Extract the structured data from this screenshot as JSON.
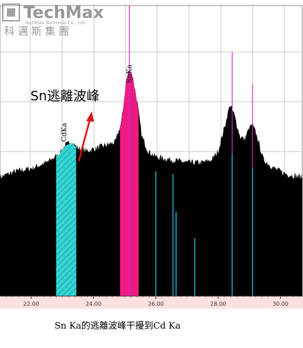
{
  "logo": {
    "brand": "TechMax",
    "subtitle": "TechMax Technical Co., Ltd",
    "chinese": "科 邁 斯 集 團"
  },
  "annotation": {
    "text": "Sn逃離波峰"
  },
  "caption": "Sn Ka的逃離波峰干擾到Cd Ka",
  "colors": {
    "spectrum": "#000000",
    "cd_band": "#33d6d6",
    "sn_band": "#ee1a84",
    "sn_marker": "#cc33cc",
    "cd_lines": "#22aacc",
    "arrow": "#dd1111",
    "grid": "#c8c8c8",
    "axis_band": "#ffe0e0"
  },
  "chart_data": {
    "type": "area",
    "title": "",
    "xlabel": "",
    "ylabel": "",
    "xlim": [
      21.0,
      30.7
    ],
    "ylim": [
      0,
      100
    ],
    "grid": true,
    "x_ticks": [
      "22.00",
      "24.00",
      "26.00",
      "28.00",
      "30.00"
    ],
    "x_tick_values": [
      22,
      24,
      26,
      28,
      30
    ],
    "series": [
      {
        "points": [
          [
            21.0,
            41
          ],
          [
            21.5,
            43
          ],
          [
            22.0,
            44
          ],
          [
            22.5,
            46
          ],
          [
            22.9,
            49
          ],
          [
            23.1,
            52
          ],
          [
            23.3,
            53
          ],
          [
            23.5,
            51
          ],
          [
            23.8,
            50
          ],
          [
            24.1,
            51
          ],
          [
            24.4,
            52
          ],
          [
            24.7,
            53
          ],
          [
            24.9,
            60
          ],
          [
            25.05,
            74
          ],
          [
            25.15,
            78
          ],
          [
            25.25,
            76
          ],
          [
            25.4,
            67
          ],
          [
            25.55,
            55
          ],
          [
            25.75,
            50
          ],
          [
            26.0,
            48
          ],
          [
            26.5,
            47
          ],
          [
            27.0,
            46
          ],
          [
            27.5,
            46
          ],
          [
            27.8,
            47
          ],
          [
            28.0,
            50
          ],
          [
            28.2,
            58
          ],
          [
            28.38,
            66
          ],
          [
            28.5,
            63
          ],
          [
            28.7,
            55
          ],
          [
            28.85,
            54
          ],
          [
            29.0,
            58
          ],
          [
            29.1,
            59
          ],
          [
            29.25,
            55
          ],
          [
            29.45,
            47
          ],
          [
            29.8,
            44
          ],
          [
            30.2,
            42
          ],
          [
            30.7,
            41
          ]
        ]
      }
    ],
    "regions": [
      {
        "label": "CdKa",
        "x0": 22.8,
        "x1": 23.45,
        "color": "cd_band",
        "hatch": true
      },
      {
        "label": "SnKa",
        "x0": 24.85,
        "x1": 25.45,
        "color": "sn_band",
        "hatch": false
      }
    ],
    "markers": [
      {
        "label": "SnKa",
        "x": 25.15,
        "y": 100,
        "color": "sn_marker"
      },
      {
        "label": "",
        "x": 28.45,
        "y": 84,
        "color": "sn_marker"
      },
      {
        "label": "",
        "x": 29.1,
        "y": 73,
        "color": "sn_marker"
      },
      {
        "label": "",
        "x": 26.0,
        "y": 43,
        "color": "cd_lines"
      },
      {
        "label": "",
        "x": 26.55,
        "y": 42,
        "color": "cd_lines"
      },
      {
        "label": "",
        "x": 26.65,
        "y": 29,
        "color": "cd_lines"
      },
      {
        "label": "",
        "x": 27.25,
        "y": 20,
        "color": "cd_lines"
      },
      {
        "label": "",
        "x": 28.45,
        "y": 49,
        "color": "cd_lines"
      },
      {
        "label": "",
        "x": 29.1,
        "y": 44,
        "color": "cd_lines"
      }
    ]
  }
}
